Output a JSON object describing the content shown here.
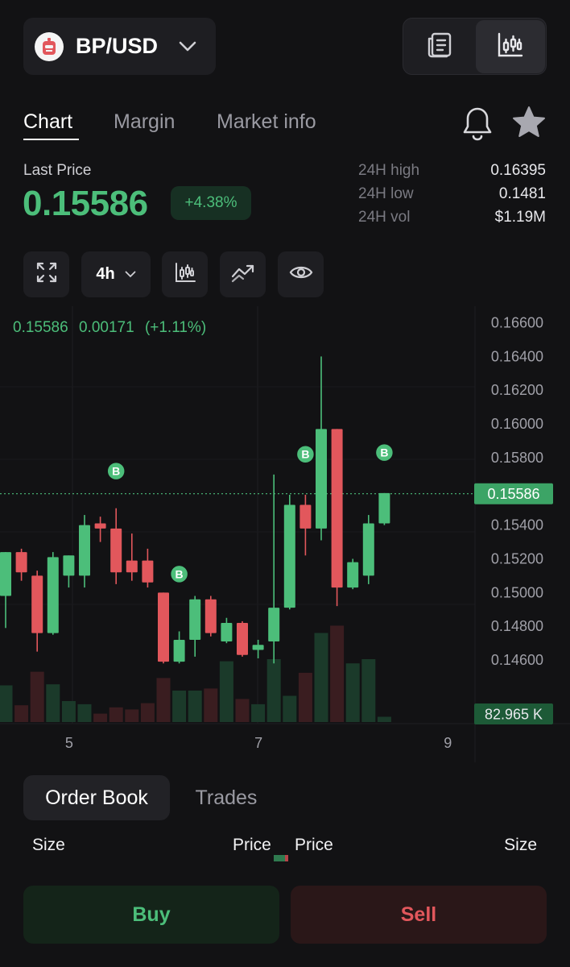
{
  "header": {
    "pair": "BP/USD",
    "coin_icon": "robot-icon",
    "view_toggle": [
      {
        "name": "orderbook-view-icon",
        "active": false
      },
      {
        "name": "candlestick-view-icon",
        "active": true
      }
    ]
  },
  "tabs": [
    {
      "label": "Chart",
      "active": true
    },
    {
      "label": "Margin",
      "active": false
    },
    {
      "label": "Market info",
      "active": false
    }
  ],
  "actions": {
    "bell_icon": "bell-icon",
    "star_icon": "star-icon"
  },
  "price": {
    "last_label": "Last Price",
    "last_value": "0.15586",
    "change": "+4.38%",
    "stats": [
      {
        "label": "24H high",
        "value": "0.16395"
      },
      {
        "label": "24H low",
        "value": "0.1481"
      },
      {
        "label": "24H vol",
        "value": "$1.19M"
      }
    ]
  },
  "toolbar": {
    "fullscreen_icon": "expand-icon",
    "timeframe": "4h",
    "indicator_icon": "candlestick-icon",
    "trend_icon": "trend-line-icon",
    "visibility_icon": "eye-icon"
  },
  "chart_data": {
    "type": "candlestick",
    "legend": {
      "price": "0.15586",
      "change": "0.00171",
      "change_pct": "(+1.11%)"
    },
    "ylim": [
      0.145,
      0.1665
    ],
    "y_ticks": [
      "0.16600",
      "0.16400",
      "0.16200",
      "0.16000",
      "0.15800",
      "0.15400",
      "0.15200",
      "0.15000",
      "0.14800",
      "0.14600"
    ],
    "last_price_label": "0.15586",
    "last_price": 0.15586,
    "volume_label": "82.965 K",
    "x_ticks": [
      {
        "label": "5",
        "index": 4
      },
      {
        "label": "7",
        "index": 16
      },
      {
        "label": "9",
        "index": 28
      }
    ],
    "candles": [
      {
        "o": 0.1498,
        "h": 0.1524,
        "l": 0.1479,
        "c": 0.1524,
        "v": 0.35
      },
      {
        "o": 0.1524,
        "h": 0.1526,
        "l": 0.1507,
        "c": 0.1512,
        "v": 0.16
      },
      {
        "o": 0.151,
        "h": 0.1513,
        "l": 0.1465,
        "c": 0.1476,
        "v": 0.48
      },
      {
        "o": 0.1476,
        "h": 0.1524,
        "l": 0.1475,
        "c": 0.1521,
        "v": 0.36
      },
      {
        "o": 0.151,
        "h": 0.1522,
        "l": 0.1503,
        "c": 0.1522,
        "v": 0.2
      },
      {
        "o": 0.151,
        "h": 0.1546,
        "l": 0.1503,
        "c": 0.154,
        "v": 0.17
      },
      {
        "o": 0.1541,
        "h": 0.1545,
        "l": 0.153,
        "c": 0.1538,
        "v": 0.08
      },
      {
        "o": 0.1538,
        "h": 0.155,
        "l": 0.1505,
        "c": 0.1512,
        "v": 0.14
      },
      {
        "o": 0.1519,
        "h": 0.1535,
        "l": 0.1507,
        "c": 0.1512,
        "v": 0.12
      },
      {
        "o": 0.1519,
        "h": 0.1526,
        "l": 0.1503,
        "c": 0.1506,
        "v": 0.18
      },
      {
        "o": 0.15,
        "h": 0.15,
        "l": 0.1458,
        "c": 0.1459,
        "v": 0.42
      },
      {
        "o": 0.1459,
        "h": 0.1477,
        "l": 0.1458,
        "c": 0.1472,
        "v": 0.3
      },
      {
        "o": 0.1472,
        "h": 0.1498,
        "l": 0.1462,
        "c": 0.1496,
        "v": 0.3
      },
      {
        "o": 0.1496,
        "h": 0.1498,
        "l": 0.1474,
        "c": 0.1476,
        "v": 0.32
      },
      {
        "o": 0.1471,
        "h": 0.1485,
        "l": 0.147,
        "c": 0.1482,
        "v": 0.58
      },
      {
        "o": 0.1482,
        "h": 0.1483,
        "l": 0.1462,
        "c": 0.1463,
        "v": 0.22
      },
      {
        "o": 0.1466,
        "h": 0.1472,
        "l": 0.1461,
        "c": 0.1469,
        "v": 0.17
      },
      {
        "o": 0.1471,
        "h": 0.157,
        "l": 0.1458,
        "c": 0.1491,
        "v": 0.6
      },
      {
        "o": 0.1491,
        "h": 0.1558,
        "l": 0.149,
        "c": 0.1552,
        "v": 0.25
      },
      {
        "o": 0.1552,
        "h": 0.1558,
        "l": 0.1522,
        "c": 0.1538,
        "v": 0.47
      },
      {
        "o": 0.1538,
        "h": 0.164,
        "l": 0.1531,
        "c": 0.1597,
        "v": 0.85
      },
      {
        "o": 0.1597,
        "h": 0.1597,
        "l": 0.1492,
        "c": 0.1503,
        "v": 0.92
      },
      {
        "o": 0.1503,
        "h": 0.152,
        "l": 0.1502,
        "c": 0.1518,
        "v": 0.56
      },
      {
        "o": 0.151,
        "h": 0.1546,
        "l": 0.1505,
        "c": 0.1541,
        "v": 0.6
      },
      {
        "o": 0.1541,
        "h": 0.1559,
        "l": 0.154,
        "c": 0.1559,
        "v": 0.05
      }
    ],
    "markers": [
      {
        "label": "B",
        "index": 7,
        "price": 0.1572
      },
      {
        "label": "B",
        "index": 11,
        "price": 0.1511
      },
      {
        "label": "B",
        "index": 19,
        "price": 0.1582
      },
      {
        "label": "B",
        "index": 24,
        "price": 0.1583
      }
    ],
    "colors": {
      "up": "#4cbe7a",
      "down": "#e2575c",
      "up_vol": "#1b3a2a",
      "down_vol": "#3a1d20"
    }
  },
  "order_book": {
    "tabs": [
      {
        "label": "Order Book",
        "active": true
      },
      {
        "label": "Trades",
        "active": false
      }
    ],
    "columns": [
      "Size",
      "Price",
      "Price",
      "Size"
    ]
  },
  "trade": {
    "buy": "Buy",
    "sell": "Sell"
  }
}
